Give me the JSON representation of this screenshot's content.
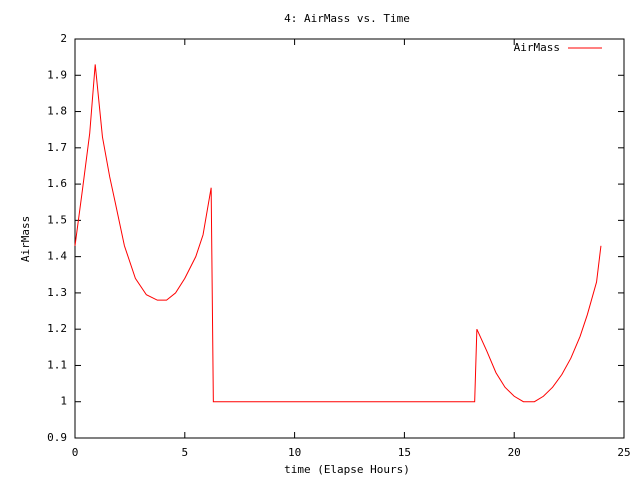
{
  "chart_data": {
    "type": "line",
    "title": "4: AirMass vs. Time",
    "xlabel": "time (Elapse Hours)",
    "ylabel": "AirMass",
    "x": [
      0,
      0.33,
      0.67,
      0.92,
      1.25,
      1.58,
      1.83,
      2.25,
      2.75,
      3.25,
      3.75,
      4.17,
      4.58,
      5.0,
      5.5,
      5.83,
      6.2,
      6.3,
      18.2,
      18.3,
      18.75,
      19.17,
      19.58,
      20.0,
      20.42,
      20.92,
      21.33,
      21.75,
      22.17,
      22.58,
      23.0,
      23.33,
      23.75,
      23.95
    ],
    "series": [
      {
        "name": "AirMass",
        "color": "#ff0000",
        "values": [
          1.43,
          1.58,
          1.74,
          1.93,
          1.73,
          1.62,
          1.55,
          1.43,
          1.34,
          1.295,
          1.28,
          1.28,
          1.3,
          1.34,
          1.4,
          1.46,
          1.59,
          1.0,
          1.0,
          1.2,
          1.14,
          1.08,
          1.04,
          1.015,
          1.0,
          1.0,
          1.015,
          1.04,
          1.075,
          1.12,
          1.18,
          1.24,
          1.33,
          1.43
        ]
      }
    ],
    "xlim": [
      0,
      25
    ],
    "xticks": [
      0,
      5,
      10,
      15,
      20,
      25
    ],
    "ylim": [
      0.9,
      2
    ],
    "yticks": [
      0.9,
      1,
      1.1,
      1.2,
      1.3,
      1.4,
      1.5,
      1.6,
      1.7,
      1.8,
      1.9,
      2
    ],
    "legend": "top-right",
    "grid": false
  }
}
